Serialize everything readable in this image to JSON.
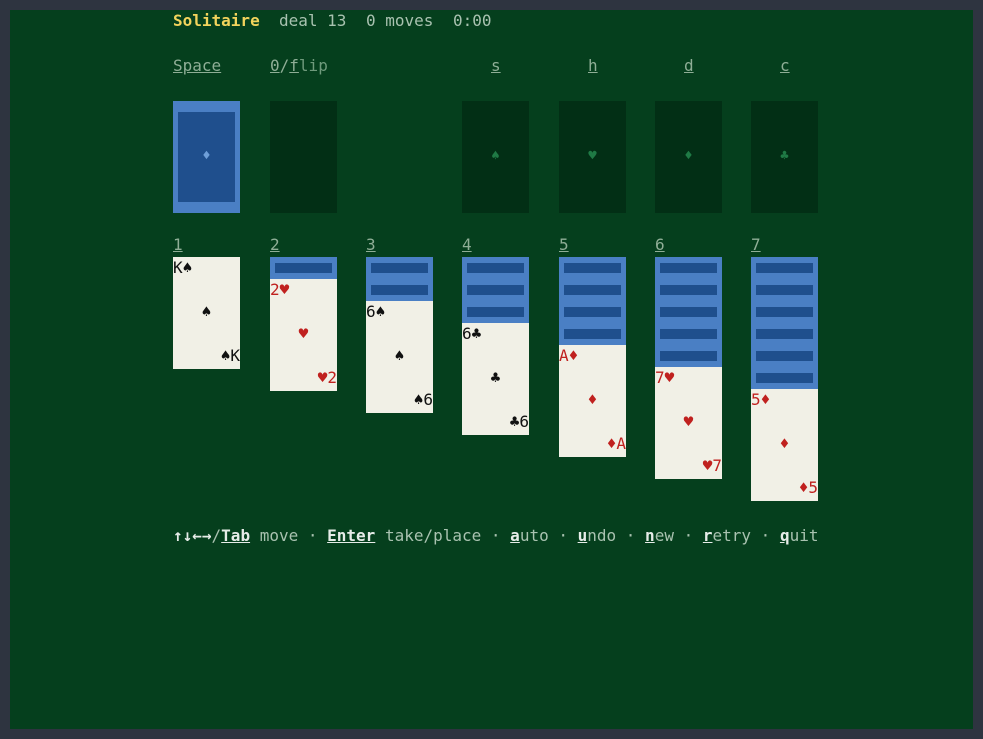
{
  "status": {
    "title": "Solitaire",
    "deal": "deal 13",
    "moves": "0 moves",
    "time": "0:00"
  },
  "top_keys": {
    "stock": "Space",
    "waste_key1": "0",
    "waste_sep": "/",
    "waste_key2": "f",
    "waste_rest": "lip",
    "spades": "s",
    "hearts": "h",
    "diamonds": "d",
    "clubs": "c"
  },
  "stock_pile": {
    "suit": "♦"
  },
  "foundations": [
    {
      "suit": "♠"
    },
    {
      "suit": "♥"
    },
    {
      "suit": "♦"
    },
    {
      "suit": "♣"
    }
  ],
  "columns": [
    {
      "label": "1",
      "facedown": 0,
      "card": {
        "rank": "K",
        "suit": "♠",
        "color": "black"
      }
    },
    {
      "label": "2",
      "facedown": 1,
      "card": {
        "rank": "2",
        "suit": "♥",
        "color": "red"
      }
    },
    {
      "label": "3",
      "facedown": 2,
      "card": {
        "rank": "6",
        "suit": "♠",
        "color": "black"
      }
    },
    {
      "label": "4",
      "facedown": 3,
      "card": {
        "rank": "6",
        "suit": "♣",
        "color": "black"
      }
    },
    {
      "label": "5",
      "facedown": 4,
      "card": {
        "rank": "A",
        "suit": "♦",
        "color": "red"
      }
    },
    {
      "label": "6",
      "facedown": 5,
      "card": {
        "rank": "7",
        "suit": "♥",
        "color": "red"
      }
    },
    {
      "label": "7",
      "facedown": 6,
      "card": {
        "rank": "5",
        "suit": "♦",
        "color": "red"
      }
    }
  ],
  "help": {
    "arrows": "↑↓←→",
    "slash": "/",
    "tab": "Tab",
    "move": " move · ",
    "enter": "Enter",
    "take": " take/place · ",
    "a": "a",
    "auto": "uto · ",
    "u": "u",
    "undo": "ndo · ",
    "n": "n",
    "new": "ew · ",
    "r": "r",
    "retry": "etry · ",
    "q": "q",
    "quit": "uit"
  },
  "colors": {
    "felt": "#053f1d",
    "slot": "#022f15",
    "card_back": "#4a7fc4",
    "card_back_inner": "#1f4f8d",
    "card_face": "#f1f0e6",
    "red_suit": "#c0211f",
    "title": "#f2d35c"
  }
}
